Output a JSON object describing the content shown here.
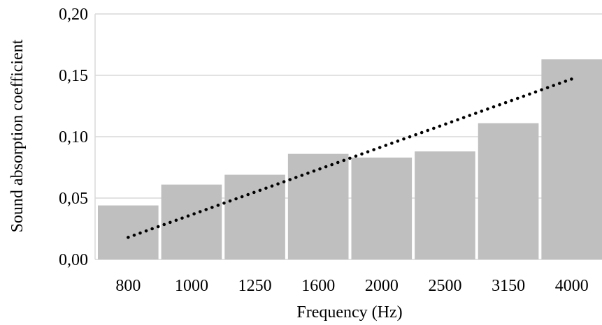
{
  "chart_data": {
    "type": "bar",
    "title": "",
    "xlabel": "Frequency (Hz)",
    "ylabel": "Sound absorption coefficient",
    "categories": [
      "800",
      "1000",
      "1250",
      "1600",
      "2000",
      "2500",
      "3150",
      "4000"
    ],
    "values": [
      0.044,
      0.061,
      0.069,
      0.086,
      0.083,
      0.088,
      0.111,
      0.163
    ],
    "ylim": [
      0,
      0.2
    ],
    "yticks": [
      "0,00",
      "0,05",
      "0,10",
      "0,15",
      "0,20"
    ],
    "grid": true,
    "legend": "none",
    "trendline": {
      "type": "linear",
      "style": "dotted",
      "start_value": 0.018,
      "end_value": 0.147
    },
    "colors": {
      "bar": "#bfbfbf",
      "grid": "#d9d9d9",
      "trendline": "#000000"
    }
  }
}
